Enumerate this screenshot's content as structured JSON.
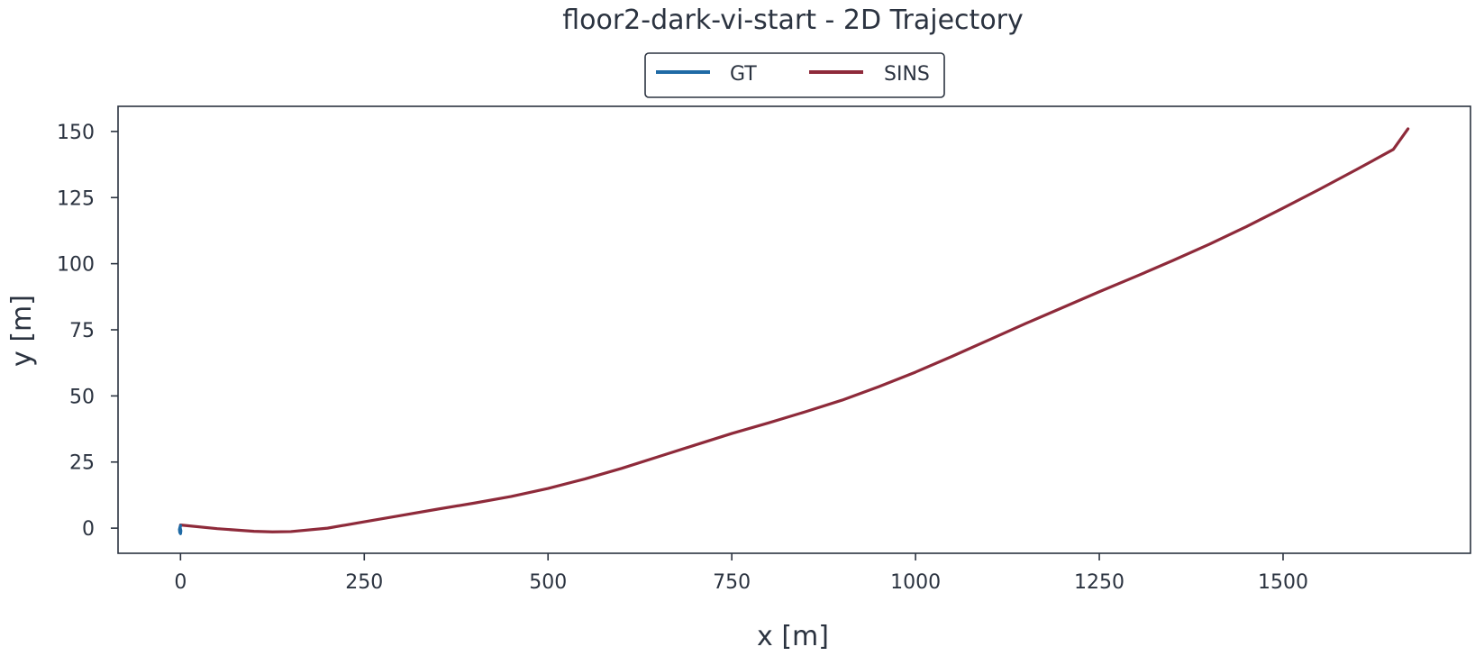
{
  "chart_data": {
    "type": "line",
    "title": "floor2-dark-vi-start - 2D Trajectory",
    "xlabel": "x [m]",
    "ylabel": "y [m]",
    "xlim": [
      -85,
      1755
    ],
    "ylim": [
      -9.5,
      159.5
    ],
    "xticks": [
      0,
      250,
      500,
      750,
      1000,
      1250,
      1500
    ],
    "yticks": [
      0,
      25,
      50,
      75,
      100,
      125,
      150
    ],
    "grid": false,
    "legend_position": "top-center",
    "series": [
      {
        "name": "GT",
        "color": "#1f6aa5",
        "x": [
          0,
          -0.8,
          -1.5,
          -1.0,
          0.0,
          0.5,
          -0.5,
          0
        ],
        "y": [
          1.0,
          0.3,
          -0.5,
          -1.6,
          -2.1,
          -1.0,
          0.2,
          0.8
        ]
      },
      {
        "name": "SINS",
        "color": "#8e2a3a",
        "x": [
          0,
          50,
          100,
          125,
          150,
          200,
          250,
          300,
          350,
          400,
          450,
          500,
          550,
          600,
          650,
          700,
          750,
          800,
          850,
          900,
          950,
          1000,
          1050,
          1100,
          1150,
          1200,
          1250,
          1300,
          1350,
          1400,
          1450,
          1500,
          1550,
          1600,
          1650,
          1670
        ],
        "y": [
          1.2,
          -0.2,
          -1.2,
          -1.4,
          -1.3,
          0.0,
          2.4,
          4.8,
          7.2,
          9.5,
          12.0,
          15.0,
          18.6,
          22.6,
          27.0,
          31.4,
          35.8,
          39.8,
          44.0,
          48.4,
          53.5,
          59.0,
          65.0,
          71.2,
          77.4,
          83.4,
          89.4,
          95.2,
          101.2,
          107.4,
          114.0,
          121.0,
          128.2,
          135.6,
          143.2,
          151.0
        ]
      }
    ]
  }
}
